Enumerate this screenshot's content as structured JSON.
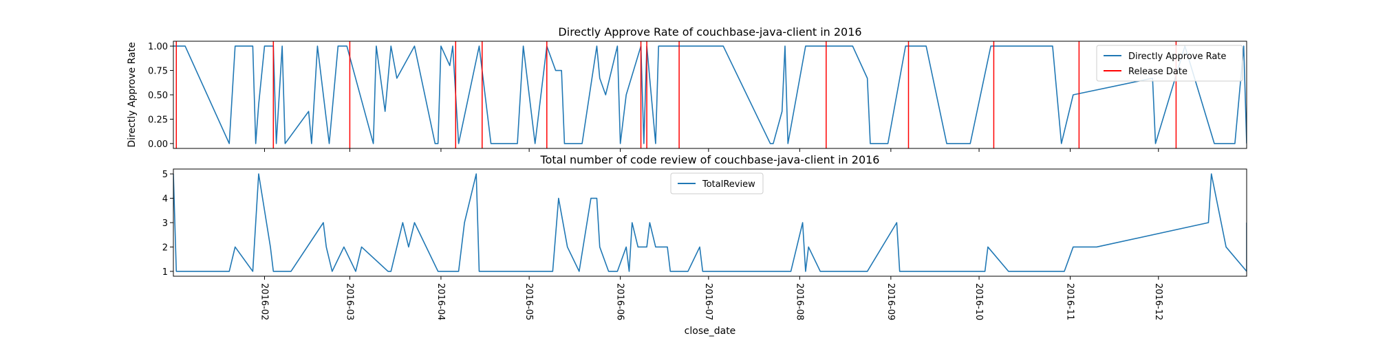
{
  "chart_data": [
    {
      "type": "line",
      "title": "Directly Approve Rate of couchbase-java-client in 2016",
      "xlabel": "",
      "ylabel": "Directly Approve Rate",
      "xlim": [
        "2016-01-01",
        "2016-12-31"
      ],
      "ylim": [
        -0.05,
        1.05
      ],
      "yticks": [
        "0.00",
        "0.25",
        "0.50",
        "0.75",
        "1.00"
      ],
      "grid": false,
      "legend_position": "top-right",
      "series": [
        {
          "name": "Directly Approve Rate",
          "color": "#1f77b4",
          "points": [
            [
              "2016-01-01",
              1.0
            ],
            [
              "2016-01-03",
              1.0
            ],
            [
              "2016-01-05",
              1.0
            ],
            [
              "2016-01-20",
              0.0
            ],
            [
              "2016-01-22",
              1.0
            ],
            [
              "2016-01-28",
              1.0
            ],
            [
              "2016-01-29",
              0.0
            ],
            [
              "2016-01-30",
              0.4
            ],
            [
              "2016-02-01",
              1.0
            ],
            [
              "2016-02-04",
              1.0
            ],
            [
              "2016-02-05",
              0.0
            ],
            [
              "2016-02-07",
              1.0
            ],
            [
              "2016-02-08",
              0.0
            ],
            [
              "2016-02-16",
              0.33
            ],
            [
              "2016-02-17",
              0.0
            ],
            [
              "2016-02-19",
              1.0
            ],
            [
              "2016-02-23",
              0.0
            ],
            [
              "2016-02-26",
              1.0
            ],
            [
              "2016-02-29",
              1.0
            ],
            [
              "2016-03-09",
              0.0
            ],
            [
              "2016-03-10",
              1.0
            ],
            [
              "2016-03-13",
              0.33
            ],
            [
              "2016-03-15",
              1.0
            ],
            [
              "2016-03-17",
              0.67
            ],
            [
              "2016-03-23",
              1.0
            ],
            [
              "2016-03-30",
              0.0
            ],
            [
              "2016-03-31",
              0.0
            ],
            [
              "2016-04-01",
              1.0
            ],
            [
              "2016-04-04",
              0.8
            ],
            [
              "2016-04-05",
              1.0
            ],
            [
              "2016-04-07",
              0.0
            ],
            [
              "2016-04-14",
              1.0
            ],
            [
              "2016-04-18",
              0.0
            ],
            [
              "2016-04-27",
              0.0
            ],
            [
              "2016-04-29",
              1.0
            ],
            [
              "2016-05-03",
              0.0
            ],
            [
              "2016-05-07",
              1.0
            ],
            [
              "2016-05-10",
              0.75
            ],
            [
              "2016-05-12",
              0.75
            ],
            [
              "2016-05-13",
              0.0
            ],
            [
              "2016-05-19",
              0.0
            ],
            [
              "2016-05-24",
              1.0
            ],
            [
              "2016-05-25",
              0.67
            ],
            [
              "2016-05-27",
              0.5
            ],
            [
              "2016-05-31",
              1.0
            ],
            [
              "2016-06-01",
              0.0
            ],
            [
              "2016-06-03",
              0.5
            ],
            [
              "2016-06-08",
              1.0
            ],
            [
              "2016-06-09",
              0.0
            ],
            [
              "2016-06-10",
              1.0
            ],
            [
              "2016-06-13",
              0.0
            ],
            [
              "2016-06-14",
              1.0
            ],
            [
              "2016-06-20",
              1.0
            ],
            [
              "2016-07-06",
              1.0
            ],
            [
              "2016-07-22",
              0.0
            ],
            [
              "2016-07-23",
              0.0
            ],
            [
              "2016-07-26",
              0.33
            ],
            [
              "2016-07-27",
              1.0
            ],
            [
              "2016-07-28",
              0.0
            ],
            [
              "2016-08-03",
              1.0
            ],
            [
              "2016-08-17",
              1.0
            ],
            [
              "2016-08-19",
              1.0
            ],
            [
              "2016-08-24",
              0.67
            ],
            [
              "2016-08-25",
              0.0
            ],
            [
              "2016-08-31",
              0.0
            ],
            [
              "2016-09-06",
              1.0
            ],
            [
              "2016-09-13",
              1.0
            ],
            [
              "2016-09-20",
              0.0
            ],
            [
              "2016-09-28",
              0.0
            ],
            [
              "2016-10-05",
              1.0
            ],
            [
              "2016-10-26",
              1.0
            ],
            [
              "2016-10-29",
              0.0
            ],
            [
              "2016-11-02",
              0.5
            ],
            [
              "2016-11-29",
              0.67
            ],
            [
              "2016-11-30",
              0.0
            ],
            [
              "2016-12-10",
              1.0
            ],
            [
              "2016-12-20",
              0.0
            ],
            [
              "2016-12-27",
              0.0
            ],
            [
              "2016-12-30",
              1.0
            ],
            [
              "2016-12-31",
              0.0
            ]
          ]
        },
        {
          "name": "Release Date",
          "color": "#ff0000",
          "vlines": [
            "2016-01-02",
            "2016-02-04",
            "2016-03-01",
            "2016-04-06",
            "2016-04-15",
            "2016-05-07",
            "2016-06-08",
            "2016-06-10",
            "2016-06-21",
            "2016-08-10",
            "2016-09-07",
            "2016-10-06",
            "2016-11-04",
            "2016-12-07"
          ]
        }
      ]
    },
    {
      "type": "line",
      "title": "Total number of code review of couchbase-java-client in 2016",
      "xlabel": "close_date",
      "ylabel": "",
      "xlim": [
        "2016-01-01",
        "2016-12-31"
      ],
      "ylim": [
        0.8,
        5.2
      ],
      "yticks": [
        "1",
        "2",
        "3",
        "4",
        "5"
      ],
      "xticks": [
        "2016-02",
        "2016-03",
        "2016-04",
        "2016-05",
        "2016-06",
        "2016-07",
        "2016-08",
        "2016-09",
        "2016-10",
        "2016-11",
        "2016-12"
      ],
      "grid": false,
      "legend_position": "top-center",
      "series": [
        {
          "name": "TotalReview",
          "color": "#1f77b4",
          "points": [
            [
              "2016-01-01",
              5
            ],
            [
              "2016-01-02",
              1
            ],
            [
              "2016-01-20",
              1
            ],
            [
              "2016-01-22",
              2
            ],
            [
              "2016-01-28",
              1
            ],
            [
              "2016-01-30",
              5
            ],
            [
              "2016-02-03",
              2
            ],
            [
              "2016-02-04",
              1
            ],
            [
              "2016-02-10",
              1
            ],
            [
              "2016-02-21",
              3
            ],
            [
              "2016-02-22",
              2
            ],
            [
              "2016-02-24",
              1
            ],
            [
              "2016-02-28",
              2
            ],
            [
              "2016-03-03",
              1
            ],
            [
              "2016-03-05",
              2
            ],
            [
              "2016-03-14",
              1
            ],
            [
              "2016-03-15",
              1
            ],
            [
              "2016-03-19",
              3
            ],
            [
              "2016-03-21",
              2
            ],
            [
              "2016-03-23",
              3
            ],
            [
              "2016-03-31",
              1
            ],
            [
              "2016-04-07",
              1
            ],
            [
              "2016-04-09",
              3
            ],
            [
              "2016-04-13",
              5
            ],
            [
              "2016-04-14",
              1
            ],
            [
              "2016-05-09",
              1
            ],
            [
              "2016-05-11",
              4
            ],
            [
              "2016-05-14",
              2
            ],
            [
              "2016-05-18",
              1
            ],
            [
              "2016-05-22",
              4
            ],
            [
              "2016-05-24",
              4
            ],
            [
              "2016-05-25",
              2
            ],
            [
              "2016-05-28",
              1
            ],
            [
              "2016-05-31",
              1
            ],
            [
              "2016-06-03",
              2
            ],
            [
              "2016-06-04",
              1
            ],
            [
              "2016-06-05",
              3
            ],
            [
              "2016-06-07",
              2
            ],
            [
              "2016-06-10",
              2
            ],
            [
              "2016-06-11",
              3
            ],
            [
              "2016-06-13",
              2
            ],
            [
              "2016-06-17",
              2
            ],
            [
              "2016-06-18",
              1
            ],
            [
              "2016-06-24",
              1
            ],
            [
              "2016-06-28",
              2
            ],
            [
              "2016-06-29",
              1
            ],
            [
              "2016-07-29",
              1
            ],
            [
              "2016-08-02",
              3
            ],
            [
              "2016-08-03",
              1
            ],
            [
              "2016-08-04",
              2
            ],
            [
              "2016-08-08",
              1
            ],
            [
              "2016-08-24",
              1
            ],
            [
              "2016-09-03",
              3
            ],
            [
              "2016-09-04",
              1
            ],
            [
              "2016-10-03",
              1
            ],
            [
              "2016-10-04",
              2
            ],
            [
              "2016-10-11",
              1
            ],
            [
              "2016-10-30",
              1
            ],
            [
              "2016-11-02",
              2
            ],
            [
              "2016-11-10",
              2
            ],
            [
              "2016-12-18",
              3
            ],
            [
              "2016-12-19",
              5
            ],
            [
              "2016-12-24",
              2
            ],
            [
              "2016-12-31",
              1
            ],
            [
              "2016-12-31",
              3
            ]
          ]
        }
      ]
    }
  ]
}
